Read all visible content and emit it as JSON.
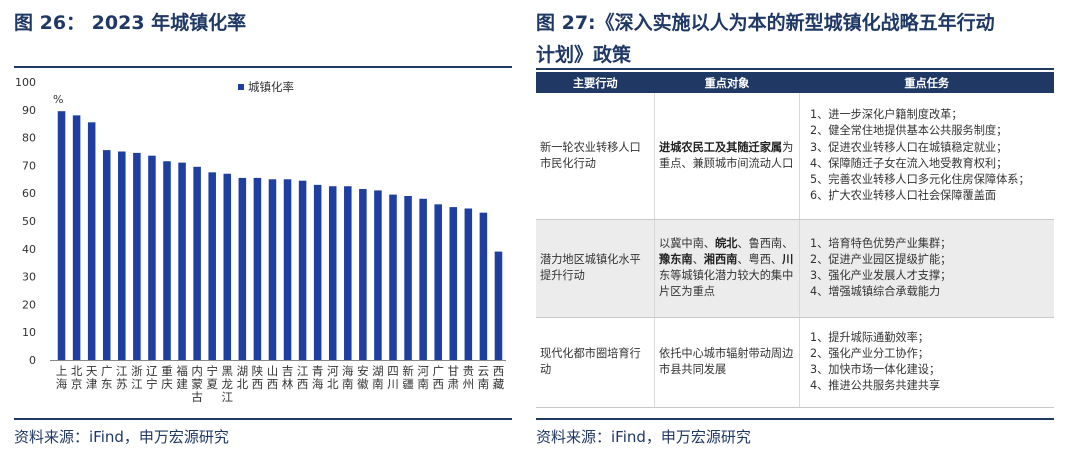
{
  "left": {
    "title": "图 26：  2023 年城镇化率",
    "source": "资料来源：iFind，申万宏源研究"
  },
  "right": {
    "title_line1": "图 27:《深入实施以人为本的新型城镇化战略五年行动",
    "title_line2": "计划》政策",
    "source": "资料来源：iFind，申万宏源研究",
    "table": {
      "headers": [
        "主要行动",
        "重点对象",
        "重点任务"
      ],
      "rows": [
        {
          "action": "新一轮农业转移人口市民化行动",
          "target_parts": [
            {
              "text": "进城农民工及其随迁家属",
              "bold": true
            },
            {
              "text": "为重点、兼顾城市间流动人口",
              "bold": false
            }
          ],
          "tasks": [
            "1、进一步深化户籍制度改革；",
            "2、健全常住地提供基本公共服务制度；",
            "3、促进农业转移人口在城镇稳定就业；",
            "4、保障随迁子女在流入地受教育权利；",
            "5、完善农业转移人口多元化住房保障体系；",
            "6、扩大农业转移人口社会保障覆盖面"
          ]
        },
        {
          "action": "潜力地区城镇化水平提升行动",
          "target_parts": [
            {
              "text": "以冀中南、",
              "bold": false
            },
            {
              "text": "皖北",
              "bold": true
            },
            {
              "text": "、鲁西南、",
              "bold": false
            },
            {
              "text": "豫东南",
              "bold": true
            },
            {
              "text": "、",
              "bold": false
            },
            {
              "text": "湘西南",
              "bold": true
            },
            {
              "text": "、粤西、",
              "bold": false
            },
            {
              "text": "川",
              "bold": true
            },
            {
              "text": "东等城镇化潜力较大的集中片区为重点",
              "bold": false
            }
          ],
          "tasks": [
            "1、培育特色优势产业集群；",
            "2、促进产业园区提级扩能；",
            "3、强化产业发展人才支撑；",
            "4、增强城镇综合承载能力"
          ]
        },
        {
          "action": "现代化都市圈培育行动",
          "target_parts": [
            {
              "text": "依托中心城市辐射带动周边市县共同发展",
              "bold": false
            }
          ],
          "tasks": [
            "1、提升城际通勤效率；",
            "2、强化产业分工协作；",
            "3、加快市场一体化建设；",
            "4、推进公共服务共建共享"
          ]
        }
      ]
    }
  },
  "chart_data": {
    "type": "bar",
    "title": "",
    "ylabel": "%",
    "legend": {
      "label": "城镇化率",
      "placement": "top-left"
    },
    "ylim": [
      0,
      100
    ],
    "yticks": [
      0,
      10,
      20,
      30,
      40,
      50,
      60,
      70,
      80,
      90,
      100
    ],
    "grid": false,
    "color": "#1f3fa0",
    "categories": [
      "上海",
      "北京",
      "天津",
      "广东",
      "江苏",
      "浙江",
      "辽宁",
      "重庆",
      "福建",
      "内蒙古",
      "宁夏",
      "黑龙江",
      "湖北",
      "陕西",
      "山西",
      "吉林",
      "江西",
      "青海",
      "河北",
      "海南",
      "安徽",
      "湖南",
      "四川",
      "新疆",
      "河南",
      "广西",
      "甘肃",
      "贵州",
      "云南",
      "西藏"
    ],
    "values": [
      89.5,
      88,
      85.5,
      75.5,
      75,
      74.5,
      73.5,
      71.5,
      71,
      69.5,
      67.5,
      67,
      65.5,
      65.5,
      65,
      65,
      64.5,
      63,
      62.5,
      62.5,
      61.5,
      61,
      59.5,
      59,
      58,
      56,
      55,
      54.5,
      53,
      39
    ],
    "series": [
      {
        "name": "城镇化率",
        "values": [
          89.5,
          88,
          85.5,
          75.5,
          75,
          74.5,
          73.5,
          71.5,
          71,
          69.5,
          67.5,
          67,
          65.5,
          65.5,
          65,
          65,
          64.5,
          63,
          62.5,
          62.5,
          61.5,
          61,
          59.5,
          59,
          58,
          56,
          55,
          54.5,
          53,
          39
        ]
      }
    ]
  }
}
